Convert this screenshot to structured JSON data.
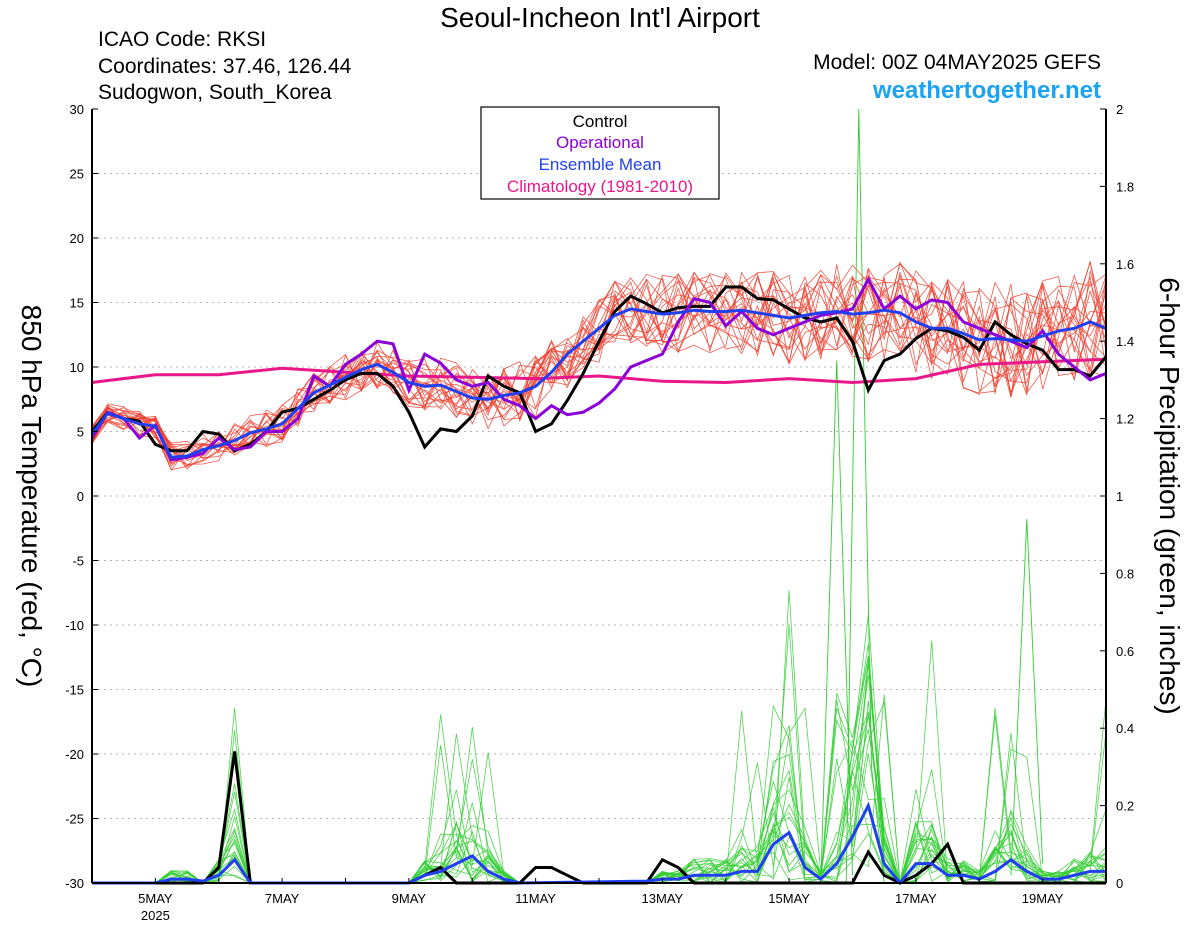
{
  "header": {
    "title": "Seoul-Incheon Int'l Airport",
    "icao": "ICAO Code: RKSI",
    "coordinates": "Coordinates: 37.46, 126.44",
    "location": "Sudogwon, South_Korea",
    "model": "Model: 00Z 04MAY2025 GEFS",
    "site": "weathertogether.net"
  },
  "colors": {
    "control": "#000000",
    "operational": "#8b00d9",
    "ensemble_mean": "#2040f0",
    "climatology": "#e8188a",
    "members_temp": "#f03c2c",
    "members_precip": "#33cc33",
    "site": "#1aa3f0"
  },
  "chart_data": {
    "type": "line",
    "title": "Seoul-Incheon Int'l Airport",
    "x_unit": "day of May 2025 (00Z)",
    "xlim": [
      4.0,
      20.0
    ],
    "x_ticks": [
      5,
      7,
      9,
      11,
      13,
      15,
      17,
      19
    ],
    "x_tick_labels": [
      "5MAY",
      "7MAY",
      "9MAY",
      "11MAY",
      "13MAY",
      "15MAY",
      "17MAY",
      "19MAY"
    ],
    "x_year_label": "2025",
    "ylabel": "850 hPa Temperature (red, °C)",
    "ylim": [
      -30,
      30
    ],
    "y_ticks": [
      30,
      25,
      20,
      15,
      10,
      5,
      0,
      -5,
      -10,
      -15,
      -20,
      -25,
      -30
    ],
    "y2label": "6-hour Precipitation (green, inches)",
    "y2lim": [
      0,
      2
    ],
    "y2_ticks": [
      "2",
      "1.8",
      "1.6",
      "1.4",
      "1.2",
      "1",
      "0.8",
      "0.6",
      "0.4",
      "0.2",
      "0"
    ],
    "grid": true,
    "legend_position": "top-center",
    "legend": [
      {
        "label": "Control",
        "series": "control"
      },
      {
        "label": "Operational",
        "series": "operational"
      },
      {
        "label": "Ensemble Mean",
        "series": "ensemble_mean"
      },
      {
        "label": "Climatology (1981-2010)",
        "series": "climatology"
      }
    ],
    "temperature_series": {
      "control": [
        [
          4.0,
          5.0
        ],
        [
          4.25,
          6.5
        ],
        [
          4.5,
          6.0
        ],
        [
          4.75,
          5.8
        ],
        [
          5.0,
          4.0
        ],
        [
          5.25,
          3.5
        ],
        [
          5.5,
          3.5
        ],
        [
          5.75,
          5.0
        ],
        [
          6.0,
          4.8
        ],
        [
          6.25,
          3.5
        ],
        [
          6.5,
          4.0
        ],
        [
          6.75,
          5.0
        ],
        [
          7.0,
          6.5
        ],
        [
          7.25,
          6.8
        ],
        [
          7.5,
          7.5
        ],
        [
          7.75,
          8.2
        ],
        [
          8.0,
          9.0
        ],
        [
          8.25,
          9.5
        ],
        [
          8.5,
          9.5
        ],
        [
          8.75,
          8.5
        ],
        [
          9.0,
          6.5
        ],
        [
          9.25,
          3.8
        ],
        [
          9.5,
          5.2
        ],
        [
          9.75,
          5.0
        ],
        [
          10.0,
          6.2
        ],
        [
          10.25,
          9.3
        ],
        [
          10.5,
          8.5
        ],
        [
          10.75,
          8.0
        ],
        [
          11.0,
          5.0
        ],
        [
          11.25,
          5.6
        ],
        [
          11.5,
          7.4
        ],
        [
          11.75,
          9.5
        ],
        [
          12.0,
          12.0
        ],
        [
          12.25,
          14.3
        ],
        [
          12.5,
          15.5
        ],
        [
          12.75,
          14.9
        ],
        [
          13.0,
          14.2
        ],
        [
          13.25,
          14.6
        ],
        [
          13.5,
          14.7
        ],
        [
          13.75,
          14.7
        ],
        [
          14.0,
          16.2
        ],
        [
          14.25,
          16.2
        ],
        [
          14.5,
          15.3
        ],
        [
          14.75,
          15.2
        ],
        [
          15.0,
          14.5
        ],
        [
          15.25,
          13.8
        ],
        [
          15.5,
          13.5
        ],
        [
          15.75,
          13.8
        ],
        [
          16.0,
          12.0
        ],
        [
          16.25,
          8.2
        ],
        [
          16.5,
          10.5
        ],
        [
          16.75,
          11.0
        ],
        [
          17.0,
          12.2
        ],
        [
          17.25,
          13.0
        ],
        [
          17.5,
          12.8
        ],
        [
          17.75,
          12.3
        ],
        [
          18.0,
          11.3
        ],
        [
          18.25,
          13.5
        ],
        [
          18.5,
          12.5
        ],
        [
          18.75,
          11.8
        ],
        [
          19.0,
          11.3
        ],
        [
          19.25,
          9.8
        ],
        [
          19.5,
          9.8
        ],
        [
          19.75,
          9.3
        ],
        [
          20.0,
          10.8
        ]
      ],
      "operational": [
        [
          4.0,
          4.5
        ],
        [
          4.25,
          6.5
        ],
        [
          4.5,
          6.0
        ],
        [
          4.75,
          4.5
        ],
        [
          5.0,
          5.5
        ],
        [
          5.25,
          2.8
        ],
        [
          5.5,
          3.0
        ],
        [
          5.75,
          3.3
        ],
        [
          6.0,
          4.5
        ],
        [
          6.25,
          3.6
        ],
        [
          6.5,
          3.8
        ],
        [
          6.75,
          5.0
        ],
        [
          7.0,
          5.0
        ],
        [
          7.25,
          6.0
        ],
        [
          7.5,
          9.3
        ],
        [
          7.75,
          8.5
        ],
        [
          8.0,
          10.2
        ],
        [
          8.25,
          11.0
        ],
        [
          8.5,
          12.0
        ],
        [
          8.75,
          11.8
        ],
        [
          9.0,
          8.2
        ],
        [
          9.25,
          11.0
        ],
        [
          9.5,
          10.3
        ],
        [
          9.75,
          9.0
        ],
        [
          10.0,
          8.5
        ],
        [
          10.25,
          8.8
        ],
        [
          10.5,
          7.5
        ],
        [
          10.75,
          7.0
        ],
        [
          11.0,
          6.0
        ],
        [
          11.25,
          7.0
        ],
        [
          11.5,
          6.3
        ],
        [
          11.75,
          6.5
        ],
        [
          12.0,
          7.2
        ],
        [
          12.25,
          8.3
        ],
        [
          12.5,
          10.0
        ],
        [
          12.75,
          10.5
        ],
        [
          13.0,
          11.0
        ],
        [
          13.25,
          13.5
        ],
        [
          13.5,
          15.3
        ],
        [
          13.75,
          15.0
        ],
        [
          14.0,
          13.2
        ],
        [
          14.25,
          14.3
        ],
        [
          14.5,
          13.0
        ],
        [
          14.75,
          12.5
        ],
        [
          15.0,
          13.0
        ],
        [
          15.25,
          13.5
        ],
        [
          15.5,
          14.0
        ],
        [
          15.75,
          14.2
        ],
        [
          16.0,
          14.5
        ],
        [
          16.25,
          16.8
        ],
        [
          16.5,
          14.5
        ],
        [
          16.75,
          15.5
        ],
        [
          17.0,
          14.5
        ],
        [
          17.25,
          15.2
        ],
        [
          17.5,
          15.0
        ],
        [
          17.75,
          13.5
        ],
        [
          18.0,
          13.0
        ],
        [
          18.25,
          12.5
        ],
        [
          18.5,
          12.0
        ],
        [
          18.75,
          11.5
        ],
        [
          19.0,
          12.8
        ],
        [
          19.25,
          11.0
        ],
        [
          19.5,
          10.0
        ],
        [
          19.75,
          9.0
        ],
        [
          20.0,
          9.5
        ]
      ],
      "ensemble_mean": [
        [
          4.0,
          4.8
        ],
        [
          4.25,
          6.4
        ],
        [
          4.5,
          6.0
        ],
        [
          4.75,
          5.6
        ],
        [
          5.0,
          5.4
        ],
        [
          5.25,
          3.0
        ],
        [
          5.5,
          3.1
        ],
        [
          5.75,
          3.6
        ],
        [
          6.0,
          3.9
        ],
        [
          6.25,
          4.3
        ],
        [
          6.5,
          4.9
        ],
        [
          6.75,
          5.2
        ],
        [
          7.0,
          5.6
        ],
        [
          7.25,
          6.8
        ],
        [
          7.5,
          8.0
        ],
        [
          7.75,
          8.6
        ],
        [
          8.0,
          9.2
        ],
        [
          8.25,
          9.8
        ],
        [
          8.5,
          10.2
        ],
        [
          8.75,
          9.6
        ],
        [
          9.0,
          8.8
        ],
        [
          9.25,
          8.5
        ],
        [
          9.5,
          8.6
        ],
        [
          9.75,
          8.1
        ],
        [
          10.0,
          7.6
        ],
        [
          10.25,
          7.5
        ],
        [
          10.5,
          7.8
        ],
        [
          10.75,
          8.0
        ],
        [
          11.0,
          8.5
        ],
        [
          11.25,
          9.6
        ],
        [
          11.5,
          11.0
        ],
        [
          11.75,
          12.0
        ],
        [
          12.0,
          13.0
        ],
        [
          12.25,
          14.0
        ],
        [
          12.5,
          14.5
        ],
        [
          12.75,
          14.3
        ],
        [
          13.0,
          14.1
        ],
        [
          13.25,
          14.2
        ],
        [
          13.5,
          14.4
        ],
        [
          13.75,
          14.3
        ],
        [
          14.0,
          14.3
        ],
        [
          14.25,
          14.4
        ],
        [
          14.5,
          14.2
        ],
        [
          14.75,
          14.0
        ],
        [
          15.0,
          13.8
        ],
        [
          15.25,
          14.0
        ],
        [
          15.5,
          14.2
        ],
        [
          15.75,
          14.3
        ],
        [
          16.0,
          14.1
        ],
        [
          16.25,
          14.2
        ],
        [
          16.5,
          14.4
        ],
        [
          16.75,
          14.2
        ],
        [
          17.0,
          13.5
        ],
        [
          17.25,
          13.0
        ],
        [
          17.5,
          13.0
        ],
        [
          17.75,
          12.6
        ],
        [
          18.0,
          12.1
        ],
        [
          18.25,
          12.2
        ],
        [
          18.5,
          12.1
        ],
        [
          18.75,
          12.0
        ],
        [
          19.0,
          12.4
        ],
        [
          19.25,
          12.8
        ],
        [
          19.5,
          13.0
        ],
        [
          19.75,
          13.5
        ],
        [
          20.0,
          13.0
        ]
      ],
      "climatology": [
        [
          4.0,
          8.8
        ],
        [
          5.0,
          9.4
        ],
        [
          6.0,
          9.4
        ],
        [
          7.0,
          9.9
        ],
        [
          8.0,
          9.6
        ],
        [
          9.0,
          9.3
        ],
        [
          10.0,
          9.2
        ],
        [
          11.0,
          9.1
        ],
        [
          12.0,
          9.3
        ],
        [
          13.0,
          8.9
        ],
        [
          14.0,
          8.8
        ],
        [
          15.0,
          9.1
        ],
        [
          16.0,
          8.8
        ],
        [
          17.0,
          9.1
        ],
        [
          18.0,
          10.2
        ],
        [
          19.0,
          10.4
        ],
        [
          20.0,
          10.6
        ]
      ]
    },
    "precip_series": {
      "control": [
        [
          4.0,
          0.0
        ],
        [
          5.5,
          0.0
        ],
        [
          5.75,
          0.0
        ],
        [
          6.0,
          0.04
        ],
        [
          6.25,
          0.34
        ],
        [
          6.5,
          0.0
        ],
        [
          9.0,
          0.0
        ],
        [
          9.25,
          0.02
        ],
        [
          9.5,
          0.04
        ],
        [
          9.75,
          0.0
        ],
        [
          10.75,
          0.0
        ],
        [
          11.0,
          0.04
        ],
        [
          11.25,
          0.04
        ],
        [
          11.5,
          0.02
        ],
        [
          11.75,
          0.0
        ],
        [
          12.75,
          0.0
        ],
        [
          13.0,
          0.06
        ],
        [
          13.25,
          0.04
        ],
        [
          13.5,
          0.0
        ],
        [
          15.75,
          0.0
        ],
        [
          16.0,
          0.0
        ],
        [
          16.25,
          0.08
        ],
        [
          16.5,
          0.02
        ],
        [
          16.75,
          0.0
        ],
        [
          17.0,
          0.02
        ],
        [
          17.25,
          0.05
        ],
        [
          17.5,
          0.1
        ],
        [
          17.75,
          0.0
        ],
        [
          20.0,
          0.0
        ]
      ],
      "ensemble_mean": [
        [
          4.0,
          0.0
        ],
        [
          5.0,
          0.0
        ],
        [
          5.25,
          0.01
        ],
        [
          5.5,
          0.01
        ],
        [
          5.75,
          0.005
        ],
        [
          6.0,
          0.02
        ],
        [
          6.25,
          0.06
        ],
        [
          6.5,
          0.0
        ],
        [
          9.0,
          0.0
        ],
        [
          9.25,
          0.02
        ],
        [
          9.5,
          0.03
        ],
        [
          9.75,
          0.05
        ],
        [
          10.0,
          0.07
        ],
        [
          10.25,
          0.03
        ],
        [
          10.5,
          0.01
        ],
        [
          10.75,
          0.0
        ],
        [
          12.75,
          0.005
        ],
        [
          13.0,
          0.01
        ],
        [
          13.25,
          0.01
        ],
        [
          13.5,
          0.02
        ],
        [
          13.75,
          0.02
        ],
        [
          14.0,
          0.02
        ],
        [
          14.25,
          0.03
        ],
        [
          14.5,
          0.03
        ],
        [
          14.75,
          0.1
        ],
        [
          15.0,
          0.13
        ],
        [
          15.25,
          0.04
        ],
        [
          15.5,
          0.01
        ],
        [
          15.75,
          0.05
        ],
        [
          16.0,
          0.12
        ],
        [
          16.25,
          0.2
        ],
        [
          16.5,
          0.05
        ],
        [
          16.75,
          0.0
        ],
        [
          17.0,
          0.05
        ],
        [
          17.25,
          0.05
        ],
        [
          17.5,
          0.02
        ],
        [
          17.75,
          0.02
        ],
        [
          18.0,
          0.01
        ],
        [
          18.25,
          0.03
        ],
        [
          18.5,
          0.06
        ],
        [
          18.75,
          0.03
        ],
        [
          19.0,
          0.01
        ],
        [
          19.25,
          0.01
        ],
        [
          19.5,
          0.02
        ],
        [
          19.75,
          0.03
        ],
        [
          20.0,
          0.03
        ]
      ]
    }
  }
}
